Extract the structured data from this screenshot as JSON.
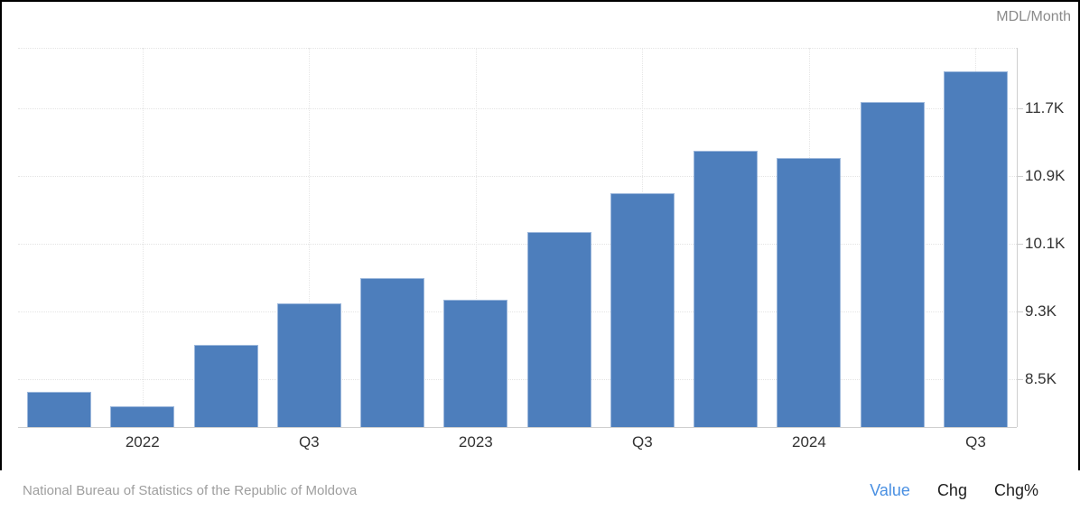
{
  "header": {
    "unit_label": "MDL/Month"
  },
  "chart_data": {
    "type": "bar",
    "title": "",
    "xlabel": "",
    "ylabel": "MDL/Month",
    "categories": [
      "2021 Q4",
      "2022 Q1",
      "2022 Q2",
      "2022 Q3",
      "2022 Q4",
      "2023 Q1",
      "2023 Q2",
      "2023 Q3",
      "2023 Q4",
      "2024 Q1",
      "2024 Q2",
      "2024 Q3"
    ],
    "values": [
      8350,
      8180,
      8910,
      9400,
      9700,
      9440,
      10240,
      10700,
      11200,
      11110,
      11770,
      12135
    ],
    "series_name": "Value",
    "y_ticks": [
      {
        "value": 8500,
        "label": "8.5K"
      },
      {
        "value": 9300,
        "label": "9.3K"
      },
      {
        "value": 10100,
        "label": "10.1K"
      },
      {
        "value": 10900,
        "label": "10.9K"
      },
      {
        "value": 11700,
        "label": "11.7K"
      }
    ],
    "x_tick_labels": [
      {
        "index": 1,
        "label": "2022"
      },
      {
        "index": 3,
        "label": "Q3"
      },
      {
        "index": 5,
        "label": "2023"
      },
      {
        "index": 7,
        "label": "Q3"
      },
      {
        "index": 9,
        "label": "2024"
      },
      {
        "index": 11,
        "label": "Q3"
      }
    ],
    "ylim": [
      7935,
      12415
    ],
    "grid": true,
    "legend_position": "none",
    "bar_color": "#4d7ebc",
    "bar_border_color": "#9db8dc"
  },
  "footer": {
    "source": "National Bureau of Statistics of the Republic of Moldova",
    "tabs": [
      {
        "label": "Value",
        "active": true
      },
      {
        "label": "Chg",
        "active": false
      },
      {
        "label": "Chg%",
        "active": false
      }
    ]
  }
}
